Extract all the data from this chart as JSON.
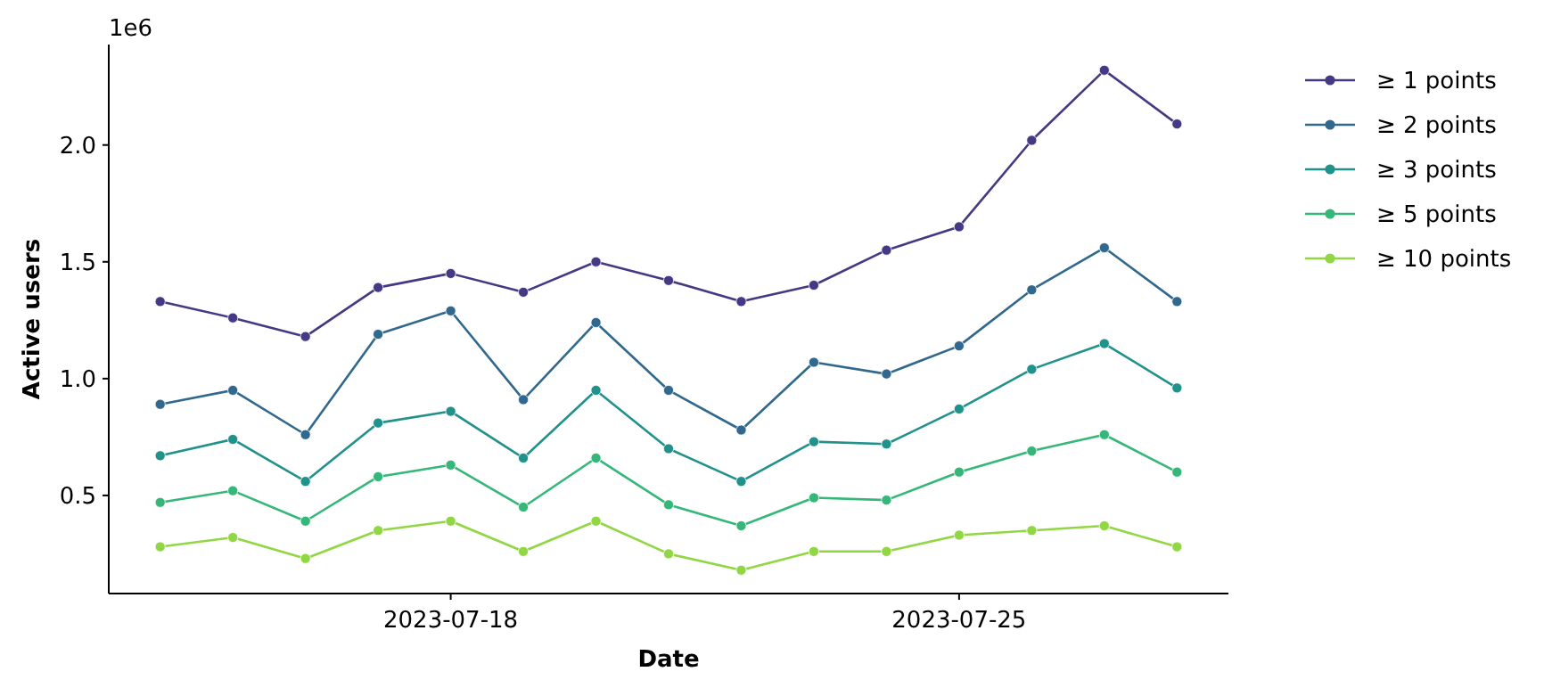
{
  "chart_data": {
    "type": "line",
    "xlabel": "Date",
    "ylabel": "Active users",
    "annotations": [
      "1e6"
    ],
    "x": [
      "2023-07-14",
      "2023-07-15",
      "2023-07-16",
      "2023-07-17",
      "2023-07-18",
      "2023-07-19",
      "2023-07-20",
      "2023-07-21",
      "2023-07-22",
      "2023-07-23",
      "2023-07-24",
      "2023-07-25",
      "2023-07-26",
      "2023-07-27",
      "2023-07-28"
    ],
    "xlim": [
      "2023-07-13T07:00",
      "2023-07-28T17:00"
    ],
    "xticks": [
      {
        "value": "2023-07-18",
        "label": "2023-07-18"
      },
      {
        "value": "2023-07-25",
        "label": "2023-07-25"
      }
    ],
    "ylim": [
      0.08,
      2.43
    ],
    "yticks": [
      0.5,
      {
        "value": 1,
        "label": "1.0"
      },
      1.5,
      {
        "value": 2,
        "label": "2.0"
      }
    ],
    "marker": "circle",
    "line_style": "solid",
    "legend": "top right",
    "series": [
      {
        "name": "≥ 1 points",
        "color": "#443983",
        "values": [
          1.33,
          1.26,
          1.18,
          1.39,
          1.45,
          1.37,
          1.5,
          1.42,
          1.33,
          1.4,
          1.55,
          1.65,
          2.02,
          2.32,
          2.09
        ]
      },
      {
        "name": "≥ 2 points",
        "color": "#31688e",
        "values": [
          0.89,
          0.95,
          0.76,
          1.19,
          1.29,
          0.91,
          1.24,
          0.95,
          0.78,
          1.07,
          1.02,
          1.14,
          1.38,
          1.56,
          1.33
        ]
      },
      {
        "name": "≥ 3 points",
        "color": "#21918c",
        "values": [
          0.67,
          0.74,
          0.56,
          0.81,
          0.86,
          0.66,
          0.95,
          0.7,
          0.56,
          0.73,
          0.72,
          0.87,
          1.04,
          1.15,
          0.96
        ]
      },
      {
        "name": "≥ 5 points",
        "color": "#35b779",
        "values": [
          0.47,
          0.52,
          0.39,
          0.58,
          0.63,
          0.45,
          0.66,
          0.46,
          0.37,
          0.49,
          0.48,
          0.6,
          0.69,
          0.76,
          0.6
        ]
      },
      {
        "name": "≥ 10 points",
        "color": "#90d743",
        "values": [
          0.28,
          0.32,
          0.23,
          0.35,
          0.39,
          0.26,
          0.39,
          0.25,
          0.18,
          0.26,
          0.26,
          0.33,
          0.35,
          0.37,
          0.28
        ]
      }
    ]
  }
}
